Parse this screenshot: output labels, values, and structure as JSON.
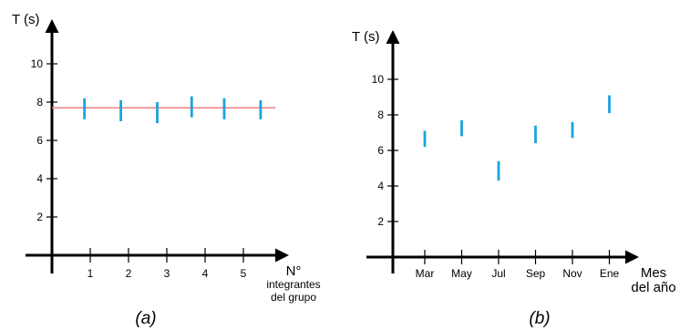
{
  "colors": {
    "axis": "#000000",
    "bar": "#1aa3dd",
    "reference_line": "#f08080"
  },
  "chart_data": [
    {
      "type": "scatter",
      "subtype": "error-bars",
      "caption": "(a)",
      "ylabel": "T (s)",
      "xlabel": [
        "N°",
        "integrantes",
        "del grupo"
      ],
      "yticks": [
        2,
        4,
        6,
        8,
        10
      ],
      "xticks": [
        1,
        2,
        3,
        4,
        5
      ],
      "ylim": [
        0,
        12
      ],
      "xlim": [
        0,
        6
      ],
      "grid": false,
      "legend": "none",
      "reference_line": {
        "y": 7.7
      },
      "points": [
        {
          "x": 0.85,
          "low": 7.1,
          "high": 8.2
        },
        {
          "x": 1.8,
          "low": 7.0,
          "high": 8.1
        },
        {
          "x": 2.75,
          "low": 6.9,
          "high": 8.0
        },
        {
          "x": 3.65,
          "low": 7.2,
          "high": 8.3
        },
        {
          "x": 4.5,
          "low": 7.1,
          "high": 8.2
        },
        {
          "x": 5.45,
          "low": 7.1,
          "high": 8.1
        }
      ]
    },
    {
      "type": "scatter",
      "subtype": "error-bars",
      "caption": "(b)",
      "ylabel": "T (s)",
      "xlabel": [
        "Mes",
        "del año"
      ],
      "yticks": [
        2,
        4,
        6,
        8,
        10
      ],
      "categories": [
        "Mar",
        "May",
        "Jul",
        "Sep",
        "Nov",
        "Ene"
      ],
      "ylim": [
        0,
        11
      ],
      "grid": false,
      "legend": "none",
      "points": [
        {
          "category": "Mar",
          "low": 6.2,
          "high": 7.1
        },
        {
          "category": "May",
          "low": 6.8,
          "high": 7.7
        },
        {
          "category": "Jul",
          "low": 4.3,
          "high": 5.4
        },
        {
          "category": "Sep",
          "low": 6.4,
          "high": 7.4
        },
        {
          "category": "Nov",
          "low": 6.7,
          "high": 7.6
        },
        {
          "category": "Ene",
          "low": 8.1,
          "high": 9.1
        }
      ]
    }
  ]
}
